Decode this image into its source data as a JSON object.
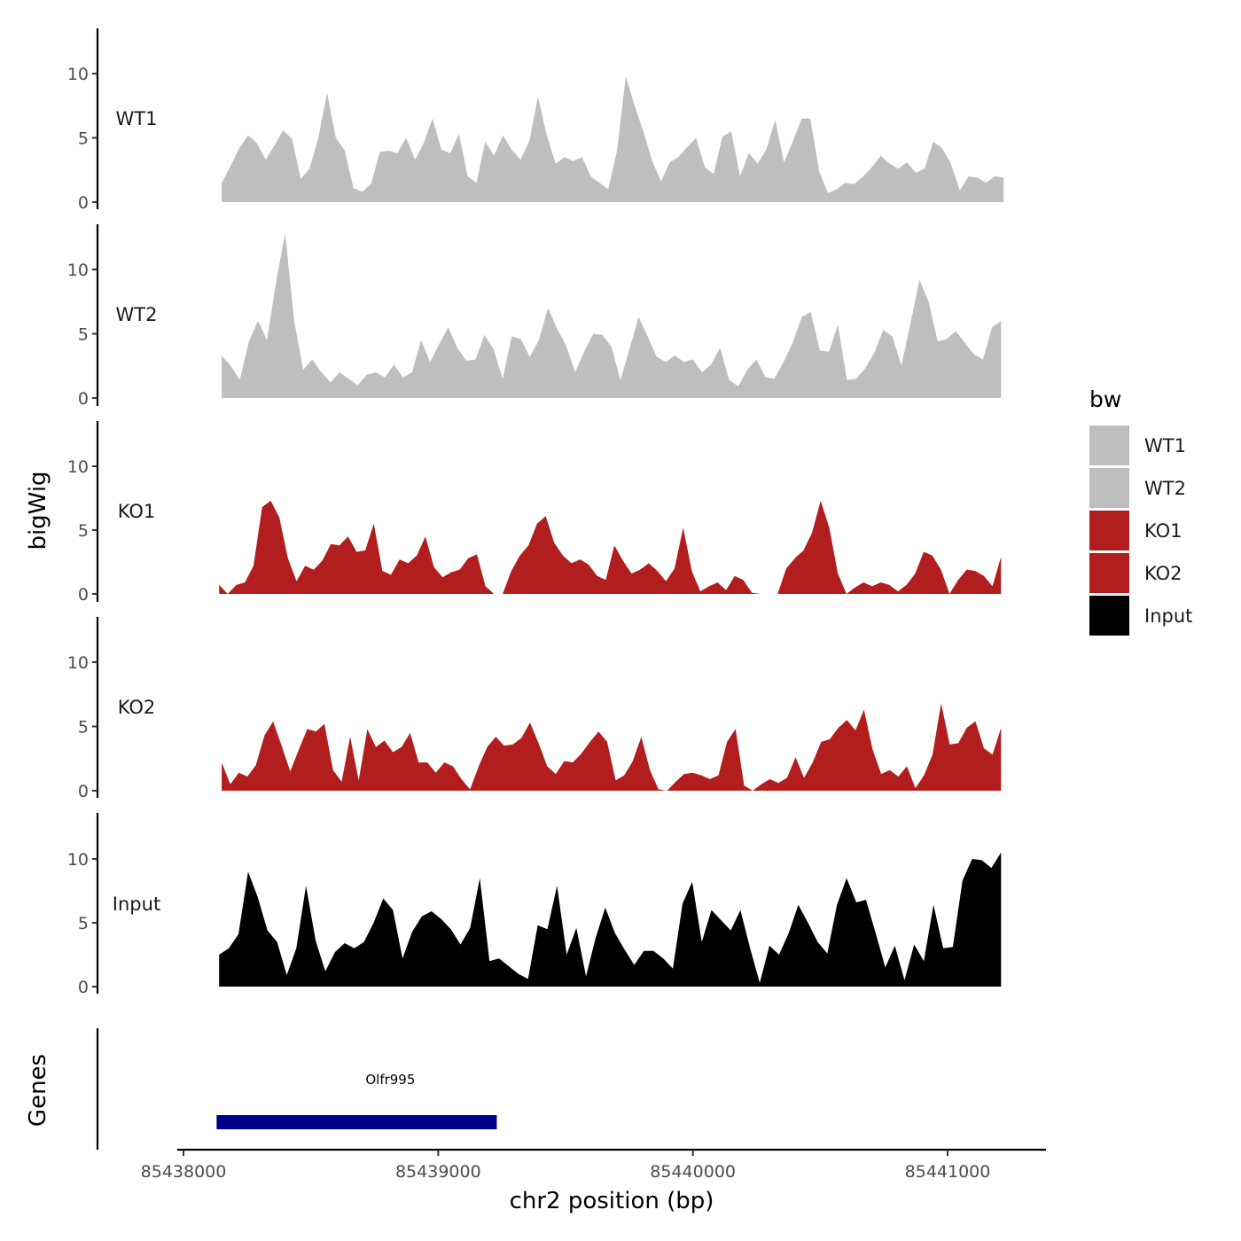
{
  "chart_data": {
    "type": "area",
    "x_range": [
      85438150,
      85441220
    ],
    "xlim": [
      85437640,
      85441450
    ],
    "ylim": [
      0,
      13
    ],
    "y_ticks": [
      0,
      5,
      10
    ],
    "x_ticks": [
      85438000,
      85439000,
      85440000,
      85441000
    ],
    "x_tick_labels": [
      "85438000",
      "85439000",
      "85440000",
      "85441000"
    ],
    "xlabel": "chr2 position (bp)",
    "ylabel": "bigWig",
    "genes_label": "Genes",
    "tracks": [
      {
        "name": "WT1",
        "color": "#bebebe",
        "x_start": 85438150,
        "x_end": 85441220,
        "values": [
          1.5,
          2.8,
          4.2,
          5.2,
          4.6,
          3.3,
          4.4,
          5.6,
          4.9,
          1.8,
          2.6,
          5.0,
          8.5,
          5.0,
          4.0,
          1.1,
          0.8,
          1.4,
          3.9,
          4.0,
          3.8,
          5.0,
          3.3,
          4.6,
          6.5,
          4.1,
          3.8,
          5.3,
          2.0,
          1.5,
          4.7,
          3.6,
          5.2,
          4.1,
          3.3,
          4.7,
          8.2,
          5.2,
          3.0,
          3.5,
          3.2,
          3.5,
          2.0,
          1.5,
          1.0,
          4.0,
          9.8,
          7.5,
          5.5,
          3.2,
          1.6,
          3.1,
          3.5,
          4.3,
          5.0,
          2.7,
          2.2,
          5.1,
          5.5,
          2.0,
          3.8,
          3.0,
          4.1,
          6.4,
          3.1,
          4.7,
          6.5,
          6.5,
          2.4,
          0.7,
          1.0,
          1.5,
          1.4,
          2.0,
          2.7,
          3.6,
          3.0,
          2.6,
          3.1,
          2.3,
          2.6,
          4.7,
          4.2,
          3.0,
          0.9,
          2.0,
          1.9,
          1.5,
          2.0,
          1.9
        ]
      },
      {
        "name": "WT2",
        "color": "#bebebe",
        "x_start": 85438150,
        "x_end": 85441210,
        "values": [
          3.3,
          2.5,
          1.4,
          4.4,
          6.0,
          4.5,
          9.0,
          12.8,
          6.0,
          2.2,
          3.0,
          2.0,
          1.2,
          2.0,
          1.5,
          1.0,
          1.8,
          2.0,
          1.6,
          2.6,
          1.6,
          2.0,
          4.5,
          2.8,
          4.2,
          5.5,
          3.9,
          2.9,
          3.0,
          4.9,
          3.8,
          1.5,
          4.8,
          4.6,
          3.2,
          4.5,
          7.0,
          5.4,
          4.1,
          2.0,
          3.6,
          5.0,
          4.9,
          4.0,
          1.4,
          3.8,
          6.3,
          4.8,
          3.2,
          2.8,
          3.3,
          2.8,
          3.0,
          2.0,
          2.6,
          3.9,
          1.4,
          0.9,
          2.2,
          3.0,
          1.6,
          1.5,
          2.8,
          4.3,
          6.3,
          6.7,
          3.7,
          3.6,
          5.7,
          1.4,
          1.5,
          2.3,
          3.5,
          5.3,
          4.8,
          2.5,
          5.8,
          9.2,
          7.5,
          4.4,
          4.6,
          5.2,
          4.3,
          3.4,
          3.0,
          5.5,
          6.0
        ]
      },
      {
        "name": "KO1",
        "color": "#b21e1e",
        "x_start": 85438140,
        "x_end": 85441210,
        "values": [
          0.7,
          0.0,
          0.7,
          0.9,
          2.2,
          6.8,
          7.3,
          6.0,
          2.8,
          1.0,
          2.2,
          1.9,
          2.6,
          3.9,
          3.8,
          4.5,
          3.3,
          3.4,
          5.5,
          1.8,
          1.5,
          2.7,
          2.4,
          3.0,
          4.5,
          2.1,
          1.3,
          1.7,
          1.9,
          2.8,
          3.1,
          0.6,
          0.0,
          0.0,
          1.8,
          3.0,
          3.8,
          5.5,
          6.1,
          4.0,
          3.0,
          2.4,
          2.7,
          2.3,
          1.4,
          1.1,
          3.8,
          2.6,
          1.6,
          1.9,
          2.4,
          1.8,
          1.0,
          2.0,
          5.2,
          1.8,
          0.2,
          0.6,
          0.9,
          0.3,
          1.4,
          1.1,
          0.1,
          0.0,
          0.0,
          0.0,
          2.0,
          2.8,
          3.4,
          4.8,
          7.3,
          5.2,
          1.6,
          0.0,
          0.5,
          0.9,
          0.6,
          0.9,
          0.7,
          0.2,
          0.7,
          1.6,
          3.3,
          3.0,
          1.9,
          0.0,
          1.1,
          1.9,
          1.8,
          1.4,
          0.6,
          2.9
        ]
      },
      {
        "name": "KO2",
        "color": "#b21e1e",
        "x_start": 85438150,
        "x_end": 85441210,
        "values": [
          2.2,
          0.5,
          1.4,
          1.1,
          2.0,
          4.3,
          5.4,
          3.5,
          1.5,
          3.2,
          4.8,
          4.6,
          5.2,
          1.6,
          0.7,
          4.2,
          0.8,
          4.8,
          3.4,
          3.9,
          3.0,
          3.4,
          4.5,
          2.2,
          2.2,
          1.4,
          2.2,
          1.9,
          0.9,
          0.1,
          1.9,
          3.4,
          4.2,
          3.5,
          3.6,
          4.1,
          5.3,
          3.7,
          1.9,
          1.3,
          2.3,
          2.2,
          2.9,
          3.8,
          4.6,
          3.8,
          0.8,
          1.2,
          2.3,
          4.2,
          1.6,
          0.1,
          0.0,
          0.7,
          1.3,
          1.4,
          1.2,
          0.9,
          1.2,
          3.8,
          4.8,
          0.4,
          0.0,
          0.5,
          0.9,
          0.6,
          1.0,
          2.6,
          1.0,
          2.2,
          3.8,
          4.0,
          4.9,
          5.5,
          4.7,
          6.3,
          3.2,
          1.3,
          1.6,
          1.1,
          1.9,
          0.2,
          1.2,
          2.8,
          6.8,
          3.6,
          3.7,
          4.9,
          5.4,
          3.3,
          2.8,
          4.9
        ]
      },
      {
        "name": "Input",
        "color": "#000000",
        "x_start": 85438140,
        "x_end": 85441210,
        "values": [
          2.5,
          3.0,
          4.1,
          9.0,
          7.0,
          4.4,
          3.5,
          0.9,
          3.0,
          7.9,
          3.6,
          1.2,
          2.7,
          3.4,
          3.0,
          3.5,
          5.0,
          6.9,
          6.0,
          2.2,
          4.3,
          5.5,
          5.9,
          5.3,
          4.5,
          3.3,
          4.6,
          8.5,
          2.0,
          2.2,
          1.6,
          1.0,
          0.6,
          4.8,
          4.5,
          7.9,
          2.5,
          4.6,
          0.8,
          3.8,
          6.2,
          4.2,
          2.9,
          1.7,
          2.8,
          2.8,
          2.2,
          1.4,
          6.5,
          8.2,
          3.5,
          6.0,
          5.2,
          4.4,
          6.0,
          3.0,
          0.3,
          3.2,
          2.5,
          4.2,
          6.4,
          5.0,
          3.5,
          2.6,
          6.4,
          8.5,
          6.6,
          6.8,
          4.2,
          1.5,
          3.2,
          0.5,
          3.3,
          2.0,
          6.4,
          3.0,
          3.1,
          8.3,
          10.0,
          9.9,
          9.3,
          10.5
        ]
      }
    ],
    "genes": [
      {
        "name": "Olfr995",
        "start": 85438130,
        "end": 85439230,
        "color": "#00008b"
      }
    ],
    "legend": {
      "title": "bw",
      "position": "right",
      "entries": [
        {
          "label": "WT1",
          "color": "#bebebe"
        },
        {
          "label": "WT2",
          "color": "#bebebe"
        },
        {
          "label": "KO1",
          "color": "#b21e1e"
        },
        {
          "label": "KO2",
          "color": "#b21e1e"
        },
        {
          "label": "Input",
          "color": "#000000"
        }
      ]
    }
  }
}
